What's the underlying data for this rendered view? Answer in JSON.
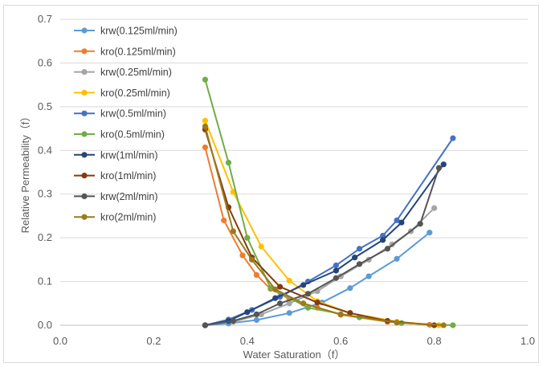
{
  "chart_data": {
    "type": "scatter",
    "title": "",
    "xlabel": "Water Saturation（f）",
    "ylabel": "Relative Permeability（f）",
    "xlim": [
      0.0,
      1.0
    ],
    "ylim": [
      0.0,
      0.7
    ],
    "x_ticks": [
      "0.0",
      "0.2",
      "0.4",
      "0.6",
      "0.8",
      "1.0"
    ],
    "y_ticks": [
      "0.0",
      "0.1",
      "0.2",
      "0.3",
      "0.4",
      "0.5",
      "0.6",
      "0.7"
    ],
    "grid": "horizontal",
    "legend_position": "top-left",
    "series": [
      {
        "name": "krw(0.125ml/min)",
        "color": "#5B9BD5",
        "points": [
          [
            0.31,
            0.0
          ],
          [
            0.36,
            0.004
          ],
          [
            0.42,
            0.012
          ],
          [
            0.49,
            0.028
          ],
          [
            0.56,
            0.052
          ],
          [
            0.62,
            0.085
          ],
          [
            0.66,
            0.112
          ],
          [
            0.72,
            0.152
          ],
          [
            0.79,
            0.212
          ]
        ]
      },
      {
        "name": "kro(0.125ml/min)",
        "color": "#ED7D31",
        "points": [
          [
            0.31,
            0.407
          ],
          [
            0.35,
            0.24
          ],
          [
            0.39,
            0.16
          ],
          [
            0.42,
            0.115
          ],
          [
            0.45,
            0.083
          ],
          [
            0.49,
            0.06
          ],
          [
            0.55,
            0.04
          ],
          [
            0.6,
            0.024
          ],
          [
            0.7,
            0.008
          ],
          [
            0.79,
            0.001
          ]
        ]
      },
      {
        "name": "krw(0.25ml/min)",
        "color": "#A5A5A5",
        "points": [
          [
            0.31,
            0.0
          ],
          [
            0.37,
            0.008
          ],
          [
            0.43,
            0.025
          ],
          [
            0.49,
            0.05
          ],
          [
            0.55,
            0.078
          ],
          [
            0.6,
            0.112
          ],
          [
            0.66,
            0.15
          ],
          [
            0.71,
            0.185
          ],
          [
            0.75,
            0.215
          ],
          [
            0.8,
            0.268
          ]
        ]
      },
      {
        "name": "kro(0.25ml/min)",
        "color": "#FFC000",
        "points": [
          [
            0.31,
            0.468
          ],
          [
            0.37,
            0.305
          ],
          [
            0.43,
            0.18
          ],
          [
            0.49,
            0.102
          ],
          [
            0.55,
            0.055
          ],
          [
            0.62,
            0.028
          ],
          [
            0.72,
            0.008
          ],
          [
            0.81,
            0.0
          ]
        ]
      },
      {
        "name": "krw(0.5ml/min)",
        "color": "#4472C4",
        "points": [
          [
            0.31,
            0.0
          ],
          [
            0.36,
            0.013
          ],
          [
            0.41,
            0.035
          ],
          [
            0.47,
            0.065
          ],
          [
            0.53,
            0.1
          ],
          [
            0.59,
            0.137
          ],
          [
            0.64,
            0.175
          ],
          [
            0.69,
            0.205
          ],
          [
            0.72,
            0.24
          ],
          [
            0.84,
            0.428
          ]
        ]
      },
      {
        "name": "kro(0.5ml/min)",
        "color": "#70AD47",
        "points": [
          [
            0.31,
            0.562
          ],
          [
            0.36,
            0.372
          ],
          [
            0.4,
            0.2
          ],
          [
            0.45,
            0.085
          ],
          [
            0.53,
            0.04
          ],
          [
            0.64,
            0.018
          ],
          [
            0.73,
            0.005
          ],
          [
            0.84,
            0.0
          ]
        ]
      },
      {
        "name": "krw(1ml/min)",
        "color": "#264478",
        "points": [
          [
            0.31,
            0.0
          ],
          [
            0.36,
            0.01
          ],
          [
            0.4,
            0.03
          ],
          [
            0.46,
            0.062
          ],
          [
            0.52,
            0.092
          ],
          [
            0.59,
            0.125
          ],
          [
            0.63,
            0.155
          ],
          [
            0.69,
            0.195
          ],
          [
            0.73,
            0.235
          ],
          [
            0.82,
            0.368
          ]
        ]
      },
      {
        "name": "kro(1ml/min)",
        "color": "#843C0C",
        "points": [
          [
            0.31,
            0.448
          ],
          [
            0.36,
            0.27
          ],
          [
            0.41,
            0.155
          ],
          [
            0.47,
            0.088
          ],
          [
            0.55,
            0.052
          ],
          [
            0.62,
            0.028
          ],
          [
            0.7,
            0.01
          ],
          [
            0.8,
            0.0
          ]
        ]
      },
      {
        "name": "krw(2ml/min)",
        "color": "#555555",
        "points": [
          [
            0.31,
            0.0
          ],
          [
            0.37,
            0.01
          ],
          [
            0.42,
            0.025
          ],
          [
            0.47,
            0.05
          ],
          [
            0.53,
            0.072
          ],
          [
            0.59,
            0.108
          ],
          [
            0.64,
            0.14
          ],
          [
            0.7,
            0.175
          ],
          [
            0.77,
            0.232
          ],
          [
            0.81,
            0.36
          ]
        ]
      },
      {
        "name": "kro(2ml/min)",
        "color": "#9C7A1A",
        "points": [
          [
            0.31,
            0.455
          ],
          [
            0.37,
            0.215
          ],
          [
            0.41,
            0.15
          ],
          [
            0.46,
            0.082
          ],
          [
            0.52,
            0.05
          ],
          [
            0.6,
            0.025
          ],
          [
            0.72,
            0.006
          ],
          [
            0.82,
            0.0
          ]
        ]
      }
    ]
  }
}
